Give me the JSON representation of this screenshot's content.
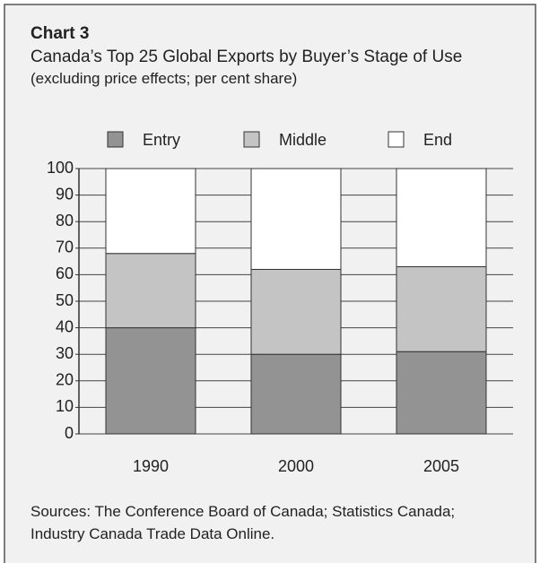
{
  "chart_data": {
    "type": "stacked_bar",
    "title": "Chart 3",
    "subtitle": "Canada’s Top 25 Global Exports by Buyer’s Stage of Use",
    "note": "(excluding price effects; per cent share)",
    "categories": [
      "1990",
      "2000",
      "2005"
    ],
    "series": [
      {
        "name": "Entry",
        "color": "#939393",
        "values": [
          40,
          30,
          31
        ]
      },
      {
        "name": "Middle",
        "color": "#c4c4c4",
        "values": [
          28,
          32,
          32
        ]
      },
      {
        "name": "End",
        "color": "#ffffff",
        "values": [
          32,
          38,
          37
        ]
      }
    ],
    "ylim": [
      0,
      100
    ],
    "yticks": [
      0,
      10,
      20,
      30,
      40,
      50,
      60,
      70,
      80,
      90,
      100
    ],
    "grid": true,
    "legend": "top",
    "source": "Sources: The Conference Board of Canada; Statistics Canada; Industry Canada Trade Data Online."
  }
}
